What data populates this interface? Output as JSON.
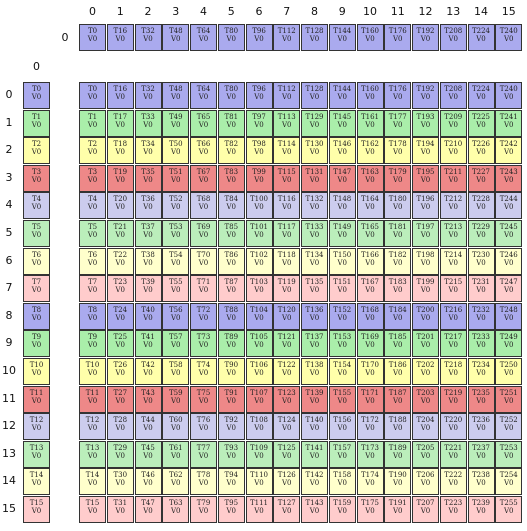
{
  "top_column_labels": [
    "0",
    "1",
    "2",
    "3",
    "4",
    "5",
    "6",
    "7",
    "8",
    "9",
    "10",
    "11",
    "12",
    "13",
    "14",
    "15"
  ],
  "b_row_label": "0",
  "a_column_label": "0",
  "row_labels": [
    "0",
    "1",
    "2",
    "3",
    "4",
    "5",
    "6",
    "7",
    "8",
    "9",
    "10",
    "11",
    "12",
    "13",
    "14",
    "15"
  ],
  "value_label": "V0",
  "row_colors": [
    "#aaaaee",
    "#aaeeaa",
    "#ffffaa",
    "#ee8888",
    "#ccccee",
    "#bbeebb",
    "#ffffcc",
    "#ffcccc",
    "#aaaaee",
    "#aaeeaa",
    "#ffffaa",
    "#ee8888",
    "#ccccee",
    "#bbeebb",
    "#ffffcc",
    "#ffcccc"
  ],
  "b_row": [
    "T0",
    "T16",
    "T32",
    "T48",
    "T64",
    "T80",
    "T96",
    "T112",
    "T128",
    "T144",
    "T160",
    "T176",
    "T192",
    "T208",
    "T224",
    "T240"
  ],
  "a_column": [
    "T0",
    "T1",
    "T2",
    "T3",
    "T4",
    "T5",
    "T6",
    "T7",
    "T8",
    "T9",
    "T10",
    "T11",
    "T12",
    "T13",
    "T14",
    "T15"
  ],
  "c_grid": [
    [
      "T0",
      "T16",
      "T32",
      "T48",
      "T64",
      "T80",
      "T96",
      "T112",
      "T128",
      "T144",
      "T160",
      "T176",
      "T192",
      "T208",
      "T224",
      "T240"
    ],
    [
      "T1",
      "T17",
      "T33",
      "T49",
      "T65",
      "T81",
      "T97",
      "T113",
      "T129",
      "T145",
      "T161",
      "T177",
      "T193",
      "T209",
      "T225",
      "T241"
    ],
    [
      "T2",
      "T18",
      "T34",
      "T50",
      "T66",
      "T82",
      "T98",
      "T114",
      "T130",
      "T146",
      "T162",
      "T178",
      "T194",
      "T210",
      "T226",
      "T242"
    ],
    [
      "T3",
      "T19",
      "T35",
      "T51",
      "T67",
      "T83",
      "T99",
      "T115",
      "T131",
      "T147",
      "T163",
      "T179",
      "T195",
      "T211",
      "T227",
      "T243"
    ],
    [
      "T4",
      "T20",
      "T36",
      "T52",
      "T68",
      "T84",
      "T100",
      "T116",
      "T132",
      "T148",
      "T164",
      "T180",
      "T196",
      "T212",
      "T228",
      "T244"
    ],
    [
      "T5",
      "T21",
      "T37",
      "T53",
      "T69",
      "T85",
      "T101",
      "T117",
      "T133",
      "T149",
      "T165",
      "T181",
      "T197",
      "T213",
      "T229",
      "T245"
    ],
    [
      "T6",
      "T22",
      "T38",
      "T54",
      "T70",
      "T86",
      "T102",
      "T118",
      "T134",
      "T150",
      "T166",
      "T182",
      "T198",
      "T214",
      "T230",
      "T246"
    ],
    [
      "T7",
      "T23",
      "T39",
      "T55",
      "T71",
      "T87",
      "T103",
      "T119",
      "T135",
      "T151",
      "T167",
      "T183",
      "T199",
      "T215",
      "T231",
      "T247"
    ],
    [
      "T8",
      "T24",
      "T40",
      "T56",
      "T72",
      "T88",
      "T104",
      "T120",
      "T136",
      "T152",
      "T168",
      "T184",
      "T200",
      "T216",
      "T232",
      "T248"
    ],
    [
      "T9",
      "T25",
      "T41",
      "T57",
      "T73",
      "T89",
      "T105",
      "T121",
      "T137",
      "T153",
      "T169",
      "T185",
      "T201",
      "T217",
      "T233",
      "T249"
    ],
    [
      "T10",
      "T26",
      "T42",
      "T58",
      "T74",
      "T90",
      "T106",
      "T122",
      "T138",
      "T154",
      "T170",
      "T186",
      "T202",
      "T218",
      "T234",
      "T250"
    ],
    [
      "T11",
      "T27",
      "T43",
      "T59",
      "T75",
      "T91",
      "T107",
      "T123",
      "T139",
      "T155",
      "T171",
      "T187",
      "T203",
      "T219",
      "T235",
      "T251"
    ],
    [
      "T12",
      "T28",
      "T44",
      "T60",
      "T76",
      "T92",
      "T108",
      "T124",
      "T140",
      "T156",
      "T172",
      "T188",
      "T204",
      "T220",
      "T236",
      "T252"
    ],
    [
      "T13",
      "T29",
      "T45",
      "T61",
      "T77",
      "T93",
      "T109",
      "T125",
      "T141",
      "T157",
      "T173",
      "T189",
      "T205",
      "T221",
      "T237",
      "T253"
    ],
    [
      "T14",
      "T30",
      "T46",
      "T62",
      "T78",
      "T94",
      "T110",
      "T126",
      "T142",
      "T158",
      "T174",
      "T190",
      "T206",
      "T222",
      "T238",
      "T254"
    ],
    [
      "T15",
      "T31",
      "T47",
      "T63",
      "T79",
      "T95",
      "T111",
      "T127",
      "T143",
      "T159",
      "T175",
      "T191",
      "T207",
      "T223",
      "T239",
      "T255"
    ]
  ]
}
